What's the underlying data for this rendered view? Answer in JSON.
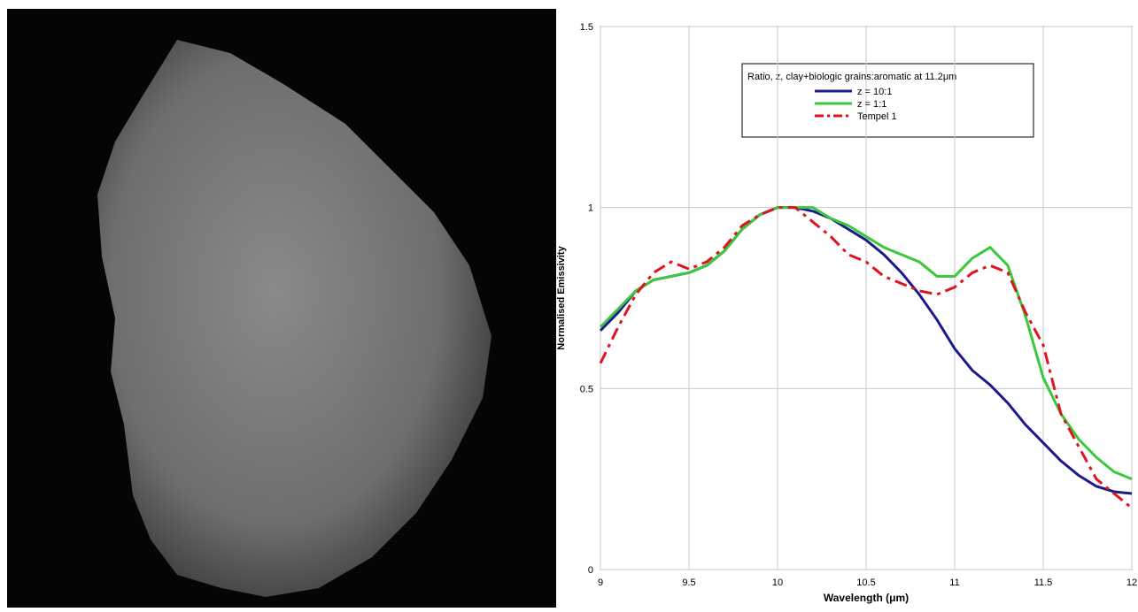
{
  "chart_data": {
    "type": "line",
    "xlabel": "Wavelength (μm)",
    "ylabel": "Normalised Emissivity",
    "legend_title": "Ratio, z, clay+biologic grains:aromatic at 11.2μm",
    "legend": "top-right",
    "grid": true,
    "x": [
      9.0,
      9.1,
      9.2,
      9.3,
      9.4,
      9.5,
      9.6,
      9.7,
      9.8,
      9.9,
      10.0,
      10.1,
      10.2,
      10.3,
      10.4,
      10.5,
      10.6,
      10.7,
      10.8,
      10.9,
      11.0,
      11.1,
      11.2,
      11.3,
      11.4,
      11.5,
      11.6,
      11.7,
      11.8,
      11.9,
      12.0
    ],
    "series": [
      {
        "name": "z = 10:1",
        "color": "#1a1a8c",
        "values": [
          0.66,
          0.71,
          0.77,
          0.8,
          0.81,
          0.82,
          0.84,
          0.88,
          0.94,
          0.98,
          1.0,
          1.0,
          0.99,
          0.97,
          0.94,
          0.91,
          0.87,
          0.82,
          0.76,
          0.69,
          0.61,
          0.55,
          0.51,
          0.46,
          0.4,
          0.35,
          0.3,
          0.26,
          0.23,
          0.215,
          0.21
        ]
      },
      {
        "name": "z = 1:1",
        "color": "#3cc83c",
        "values": [
          0.67,
          0.72,
          0.77,
          0.8,
          0.81,
          0.82,
          0.84,
          0.88,
          0.94,
          0.98,
          1.0,
          1.0,
          1.0,
          0.97,
          0.95,
          0.92,
          0.89,
          0.87,
          0.85,
          0.81,
          0.81,
          0.86,
          0.89,
          0.84,
          0.7,
          0.53,
          0.43,
          0.36,
          0.31,
          0.27,
          0.25
        ]
      },
      {
        "name": "Tempel 1",
        "color": "#e0141e",
        "dashed": true,
        "values": [
          0.57,
          0.67,
          0.76,
          0.82,
          0.85,
          0.83,
          0.85,
          0.89,
          0.95,
          0.98,
          1.0,
          1.0,
          0.96,
          0.92,
          0.87,
          0.85,
          0.81,
          0.79,
          0.77,
          0.76,
          0.78,
          0.82,
          0.84,
          0.82,
          0.71,
          0.62,
          0.43,
          0.34,
          0.25,
          0.21,
          0.17
        ]
      }
    ],
    "xlim": [
      9,
      12
    ],
    "xticks": [
      9,
      9.5,
      10,
      10.5,
      11,
      11.5,
      12
    ],
    "ylim": [
      0,
      1.5
    ],
    "yticks": [
      0,
      0.5,
      1,
      1.5
    ]
  }
}
